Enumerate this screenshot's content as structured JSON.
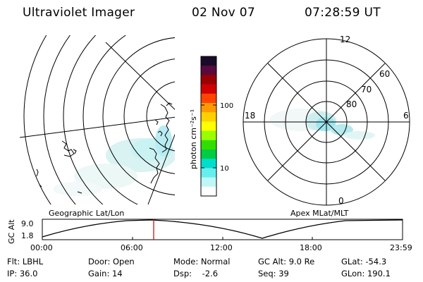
{
  "header": {
    "title": "Ultraviolet Imager",
    "date": "02 Nov 07",
    "time": "07:28:59 UT"
  },
  "panels": {
    "left_label": "Geographic Lat/Lon",
    "right_label": "Apex MLat/MLT"
  },
  "polar_labels": {
    "top": "12",
    "left": "18",
    "right": "6",
    "bottom": "0",
    "lat60": "60",
    "lat70": "70",
    "lat80": "80"
  },
  "colorbar": {
    "unit": "photon cm⁻²s⁻¹",
    "ticks": [
      "100",
      "10"
    ],
    "scale": "log",
    "colors": [
      "#1a0a2a",
      "#5a0a3a",
      "#9a0000",
      "#d00000",
      "#ff4400",
      "#ff9900",
      "#ffd000",
      "#ffff00",
      "#99ff00",
      "#33dd00",
      "#00cc44",
      "#00ddcc",
      "#66eeee",
      "#bff7f7",
      "#ffffff"
    ]
  },
  "timeline": {
    "ylabel": "GC Alt",
    "y_ticks": [
      "9.0",
      "1.8"
    ],
    "x_ticks": [
      "00:00",
      "06:00",
      "12:00",
      "18:00",
      "23:59"
    ],
    "current_time": "07:28:59",
    "marker_color": "#cc0000",
    "curve_color": "#000000"
  },
  "info": {
    "flt": "Flt: LBHL",
    "ip": "IP: 36.0",
    "door": "Door: Open",
    "gain": "Gain: 14",
    "mode": "Mode: Normal",
    "dsp": "Dsp:    -2.6",
    "gc_alt": "GC Alt: 9.0 Re",
    "seq": "Seq: 39",
    "glat": "GLat: -54.3",
    "glon": "GLon: 190.1"
  }
}
